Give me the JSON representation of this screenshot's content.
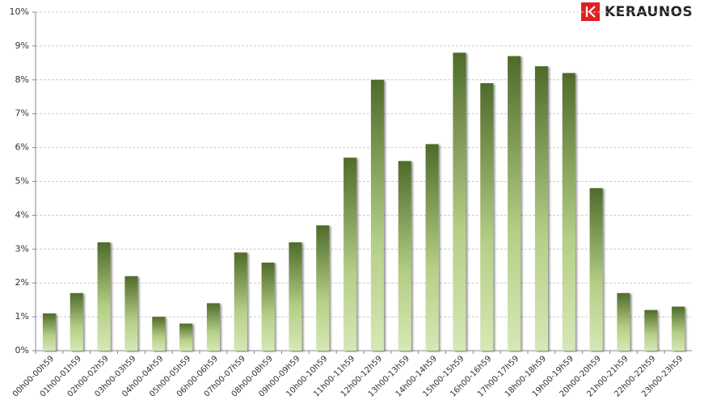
{
  "chart_data": {
    "type": "bar",
    "logo_text": "KERAUNOS",
    "categories": [
      "00h00-00h59",
      "01h00-01h59",
      "02h00-02h59",
      "03h00-03h59",
      "04h00-04h59",
      "05h00-05h59",
      "06h00-06h59",
      "07h00-07h59",
      "08h00-08h59",
      "09h00-09h59",
      "10h00-10h59",
      "11h00-11h59",
      "12h00-12h59",
      "13h00-13h59",
      "14h00-14h59",
      "15h00-15h59",
      "16h00-16h59",
      "17h00-17h59",
      "18h00-18h59",
      "19h00-19h59",
      "20h00-20h59",
      "21h00-21h59",
      "22h00-22h59",
      "23h00-23h59"
    ],
    "values": [
      1.1,
      1.7,
      3.2,
      2.2,
      1.0,
      0.8,
      1.4,
      2.9,
      2.6,
      3.2,
      3.7,
      5.7,
      8.0,
      5.6,
      6.1,
      8.8,
      7.9,
      8.7,
      8.4,
      8.2,
      4.8,
      1.7,
      1.2,
      1.3
    ],
    "color": "#4f6b2a",
    "ylim": [
      0,
      10
    ],
    "yticks": [
      {
        "value": 0,
        "label": "0%"
      },
      {
        "value": 1,
        "label": "1%"
      },
      {
        "value": 2,
        "label": "2%"
      },
      {
        "value": 3,
        "label": "3%"
      },
      {
        "value": 4,
        "label": "4%"
      },
      {
        "value": 5,
        "label": "5%"
      },
      {
        "value": 6,
        "label": "6%"
      },
      {
        "value": 7,
        "label": "7%"
      },
      {
        "value": 8,
        "label": "8%"
      },
      {
        "value": 9,
        "label": "9%"
      },
      {
        "value": 10,
        "label": "10%"
      }
    ],
    "grid": true
  }
}
